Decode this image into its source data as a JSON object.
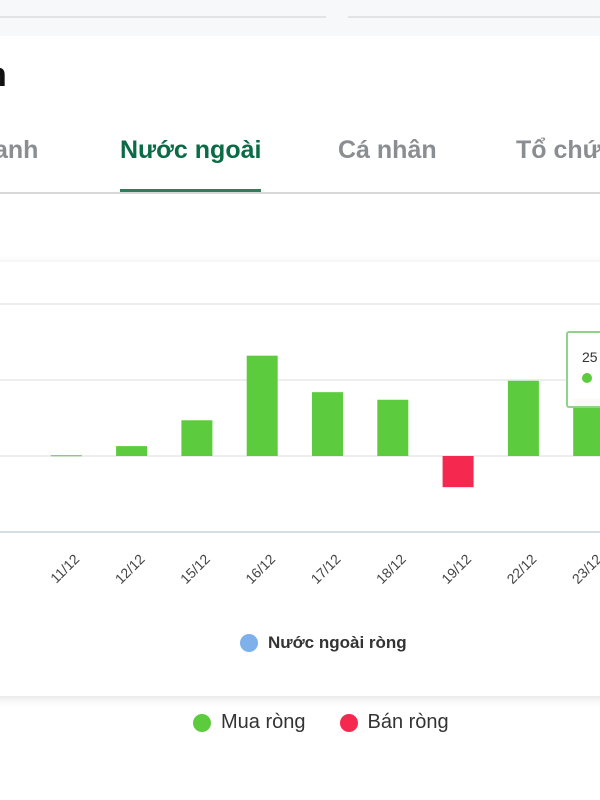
{
  "page": {
    "title_fragment": "n"
  },
  "tabs": [
    {
      "label": "anh",
      "active": false
    },
    {
      "label": "Nước ngoài",
      "active": true
    },
    {
      "label": "Cá nhân",
      "active": false
    },
    {
      "label": "Tổ chứ",
      "active": false
    }
  ],
  "colors": {
    "positive": "#5ccb3d",
    "negative": "#f5284f",
    "series_dot": "#7eb0ec",
    "tab_active": "#0a6b46"
  },
  "chart_data": {
    "type": "bar",
    "categories": [
      "",
      "11/12",
      "12/12",
      "15/12",
      "16/12",
      "17/12",
      "18/12",
      "19/12",
      "22/12",
      "23/12"
    ],
    "series": [
      {
        "name": "Nước ngoài ròng",
        "values": [
          0,
          0.01,
          0.13,
          0.47,
          1.32,
          0.84,
          0.74,
          -0.41,
          0.99,
          0.75
        ]
      }
    ],
    "ylim": [
      -1,
      2
    ],
    "grid": true,
    "legend": "bottom",
    "tooltip": {
      "value_fragment": "25"
    },
    "sign_legend": [
      {
        "label": "Mua ròng",
        "color": "#5ccb3d"
      },
      {
        "label": "Bán ròng",
        "color": "#f5284f"
      }
    ]
  }
}
